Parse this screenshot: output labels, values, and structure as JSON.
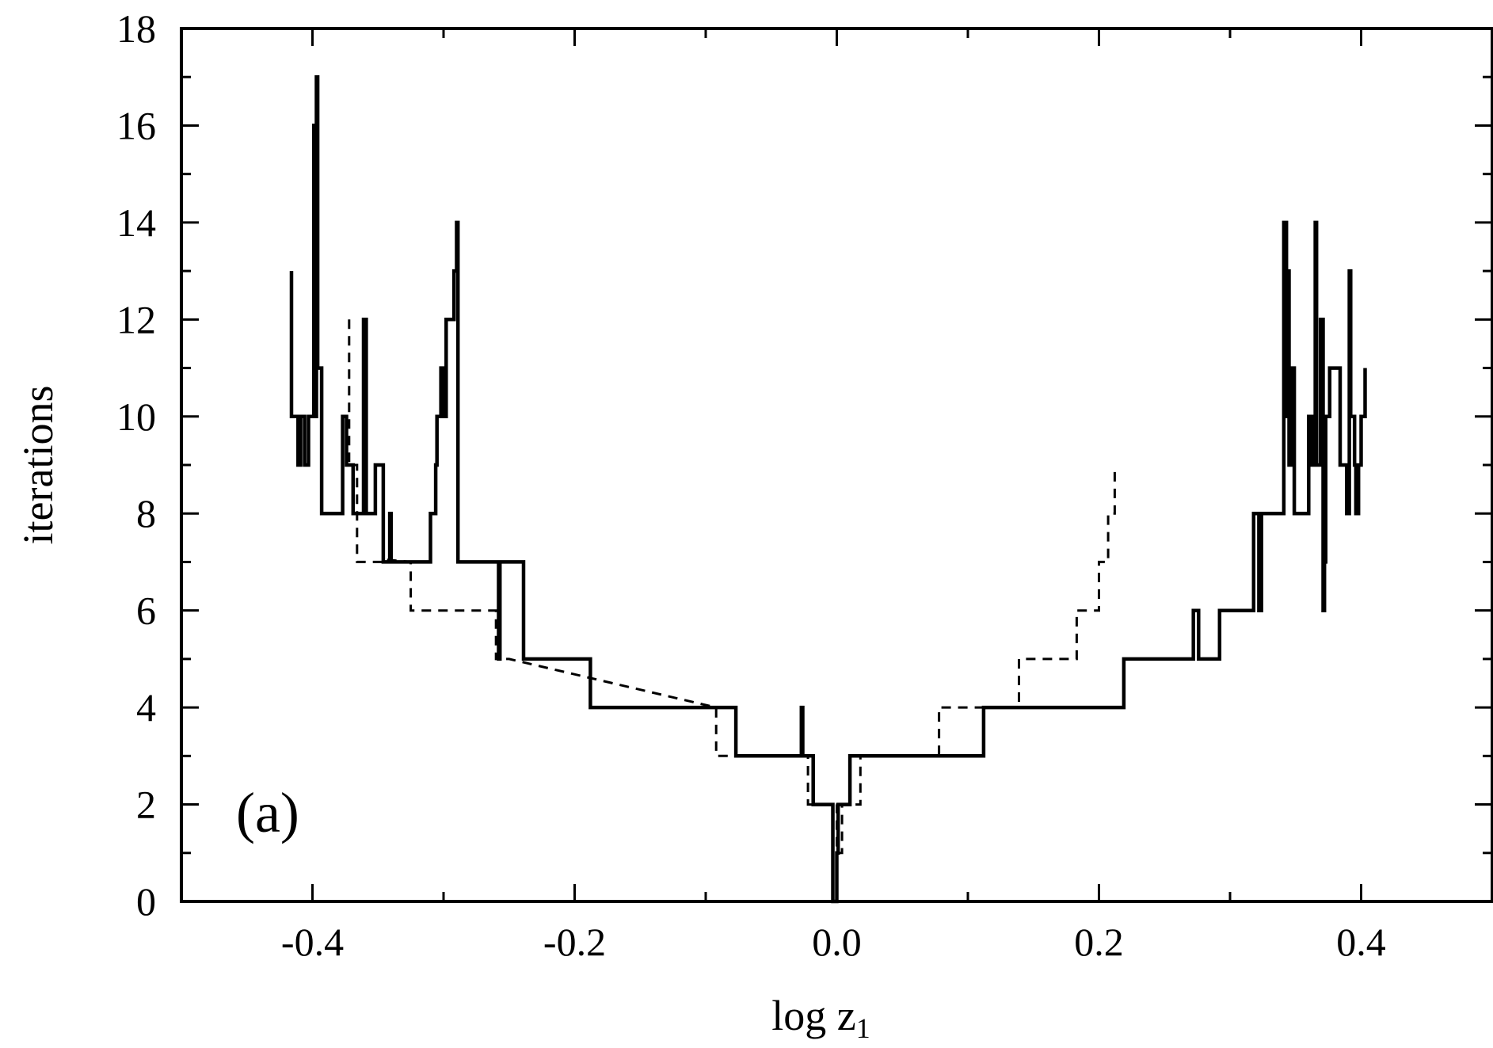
{
  "chart_data": {
    "type": "line",
    "title": "",
    "xlabel": "log z",
    "xlabel_subscript": "1",
    "ylabel": "iterations",
    "panel_label": "(a)",
    "xlim": [
      -0.5,
      0.5
    ],
    "ylim": [
      0,
      18
    ],
    "x_ticks": [
      -0.4,
      -0.2,
      0.0,
      0.2,
      0.4
    ],
    "x_tick_labels": [
      "-0.4",
      "-0.2",
      "0.0",
      "0.2",
      "0.4"
    ],
    "x_minor_ticks": [
      -0.3,
      -0.1,
      0.1,
      0.3
    ],
    "y_ticks": [
      0,
      2,
      4,
      6,
      8,
      10,
      12,
      14,
      16,
      18
    ],
    "y_tick_labels": [
      "0",
      "2",
      "4",
      "6",
      "8",
      "10",
      "12",
      "14",
      "16",
      "18"
    ],
    "y_minor_ticks": [
      1,
      3,
      5,
      7,
      9,
      11,
      13,
      15,
      17
    ],
    "grid": false,
    "legend": "none",
    "series": [
      {
        "style": "solid",
        "color": "#000000",
        "points": [
          [
            -0.416,
            13
          ],
          [
            -0.416,
            10
          ],
          [
            -0.411,
            10
          ],
          [
            -0.411,
            9
          ],
          [
            -0.409,
            9
          ],
          [
            -0.409,
            10
          ],
          [
            -0.406,
            10
          ],
          [
            -0.406,
            9
          ],
          [
            -0.403,
            9
          ],
          [
            -0.403,
            10
          ],
          [
            -0.399,
            10
          ],
          [
            -0.399,
            16
          ],
          [
            -0.398,
            16
          ],
          [
            -0.398,
            10
          ],
          [
            -0.397,
            10
          ],
          [
            -0.397,
            17
          ],
          [
            -0.396,
            17
          ],
          [
            -0.396,
            11
          ],
          [
            -0.393,
            11
          ],
          [
            -0.393,
            8
          ],
          [
            -0.377,
            8
          ],
          [
            -0.377,
            10
          ],
          [
            -0.374,
            10
          ],
          [
            -0.374,
            9
          ],
          [
            -0.369,
            9
          ],
          [
            -0.369,
            8
          ],
          [
            -0.361,
            8
          ],
          [
            -0.361,
            12
          ],
          [
            -0.359,
            12
          ],
          [
            -0.359,
            8
          ],
          [
            -0.352,
            8
          ],
          [
            -0.352,
            9
          ],
          [
            -0.346,
            9
          ],
          [
            -0.346,
            7
          ],
          [
            -0.341,
            7
          ],
          [
            -0.341,
            8
          ],
          [
            -0.34,
            8
          ],
          [
            -0.34,
            7
          ],
          [
            -0.31,
            7
          ],
          [
            -0.31,
            8
          ],
          [
            -0.306,
            8
          ],
          [
            -0.306,
            9
          ],
          [
            -0.305,
            9
          ],
          [
            -0.305,
            10
          ],
          [
            -0.302,
            10
          ],
          [
            -0.302,
            11
          ],
          [
            -0.3,
            11
          ],
          [
            -0.3,
            10
          ],
          [
            -0.298,
            10
          ],
          [
            -0.298,
            12
          ],
          [
            -0.292,
            12
          ],
          [
            -0.292,
            13
          ],
          [
            -0.29,
            13
          ],
          [
            -0.29,
            14
          ],
          [
            -0.289,
            14
          ],
          [
            -0.289,
            7
          ],
          [
            -0.258,
            7
          ],
          [
            -0.258,
            5
          ],
          [
            -0.257,
            5
          ],
          [
            -0.257,
            7
          ],
          [
            -0.239,
            7
          ],
          [
            -0.239,
            5
          ],
          [
            -0.188,
            5
          ],
          [
            -0.188,
            4
          ],
          [
            -0.077,
            4
          ],
          [
            -0.077,
            3
          ],
          [
            -0.027,
            3
          ],
          [
            -0.027,
            4
          ],
          [
            -0.026,
            4
          ],
          [
            -0.026,
            3
          ],
          [
            -0.018,
            3
          ],
          [
            -0.018,
            2
          ],
          [
            -0.003,
            2
          ],
          [
            -0.003,
            0
          ],
          [
            0.0,
            0
          ],
          [
            0.0,
            1
          ],
          [
            0.001,
            1
          ],
          [
            0.001,
            2
          ],
          [
            0.01,
            2
          ],
          [
            0.01,
            3
          ],
          [
            0.112,
            3
          ],
          [
            0.112,
            4
          ],
          [
            0.219,
            4
          ],
          [
            0.219,
            5
          ],
          [
            0.272,
            5
          ],
          [
            0.272,
            6
          ],
          [
            0.276,
            6
          ],
          [
            0.276,
            5
          ],
          [
            0.292,
            5
          ],
          [
            0.292,
            6
          ],
          [
            0.318,
            6
          ],
          [
            0.318,
            8
          ],
          [
            0.322,
            8
          ],
          [
            0.322,
            6
          ],
          [
            0.324,
            6
          ],
          [
            0.324,
            8
          ],
          [
            0.341,
            8
          ],
          [
            0.341,
            14
          ],
          [
            0.343,
            14
          ],
          [
            0.343,
            10
          ],
          [
            0.344,
            10
          ],
          [
            0.344,
            13
          ],
          [
            0.345,
            13
          ],
          [
            0.345,
            9
          ],
          [
            0.347,
            9
          ],
          [
            0.347,
            11
          ],
          [
            0.349,
            11
          ],
          [
            0.349,
            8
          ],
          [
            0.36,
            8
          ],
          [
            0.36,
            10
          ],
          [
            0.362,
            10
          ],
          [
            0.362,
            9
          ],
          [
            0.364,
            9
          ],
          [
            0.364,
            10
          ],
          [
            0.365,
            10
          ],
          [
            0.365,
            14
          ],
          [
            0.366,
            14
          ],
          [
            0.366,
            9
          ],
          [
            0.369,
            9
          ],
          [
            0.369,
            12
          ],
          [
            0.371,
            12
          ],
          [
            0.371,
            6
          ],
          [
            0.372,
            6
          ],
          [
            0.372,
            7
          ],
          [
            0.373,
            7
          ],
          [
            0.373,
            10
          ],
          [
            0.376,
            10
          ],
          [
            0.376,
            11
          ],
          [
            0.384,
            11
          ],
          [
            0.384,
            9
          ],
          [
            0.389,
            9
          ],
          [
            0.389,
            8
          ],
          [
            0.391,
            8
          ],
          [
            0.391,
            13
          ],
          [
            0.392,
            13
          ],
          [
            0.392,
            10
          ],
          [
            0.395,
            10
          ],
          [
            0.395,
            9
          ],
          [
            0.396,
            9
          ],
          [
            0.396,
            8
          ],
          [
            0.398,
            8
          ],
          [
            0.398,
            9
          ],
          [
            0.4,
            9
          ],
          [
            0.4,
            10
          ],
          [
            0.403,
            10
          ],
          [
            0.403,
            11
          ]
        ]
      },
      {
        "style": "dashed",
        "color": "#000000",
        "points": [
          [
            -0.372,
            12
          ],
          [
            -0.372,
            9
          ],
          [
            -0.366,
            9
          ],
          [
            -0.366,
            7
          ],
          [
            -0.345,
            7
          ],
          [
            -0.345,
            7.05
          ],
          [
            -0.325,
            7
          ],
          [
            -0.325,
            6
          ],
          [
            -0.26,
            6
          ],
          [
            -0.26,
            5
          ],
          [
            -0.25,
            5
          ],
          [
            -0.092,
            4
          ],
          [
            -0.092,
            3
          ],
          [
            -0.077,
            3
          ],
          [
            -0.022,
            3
          ],
          [
            -0.022,
            2
          ],
          [
            -0.014,
            2
          ],
          [
            0.0,
            2
          ],
          [
            0.0,
            1
          ],
          [
            0.004,
            1
          ],
          [
            0.004,
            2
          ],
          [
            0.018,
            2
          ],
          [
            0.018,
            3
          ],
          [
            0.03,
            3
          ],
          [
            0.078,
            3
          ],
          [
            0.078,
            4
          ],
          [
            0.1,
            4
          ],
          [
            0.139,
            4
          ],
          [
            0.139,
            5
          ],
          [
            0.183,
            5
          ],
          [
            0.183,
            6
          ],
          [
            0.2,
            6
          ],
          [
            0.2,
            7
          ],
          [
            0.207,
            7
          ],
          [
            0.207,
            8
          ],
          [
            0.212,
            8
          ],
          [
            0.212,
            9
          ]
        ]
      }
    ]
  }
}
